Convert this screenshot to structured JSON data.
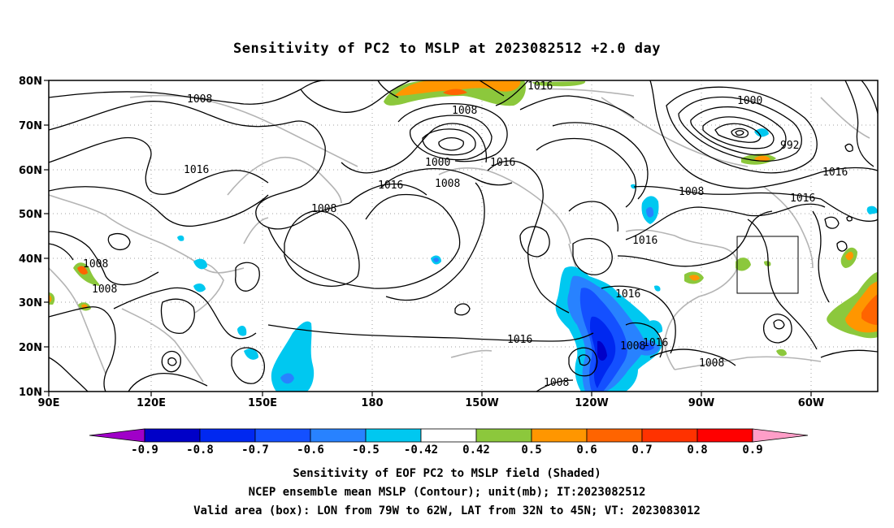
{
  "title": "Sensitivity of PC2 to MSLP at 2023082512 +2.0 day",
  "lat_ticks": [
    "80N",
    "70N",
    "60N",
    "50N",
    "40N",
    "30N",
    "20N",
    "10N"
  ],
  "lon_ticks": [
    "90E",
    "120E",
    "150E",
    "180",
    "150W",
    "120W",
    "90W",
    "60W"
  ],
  "contour_labels": [
    "1016",
    "1008",
    "1008",
    "1000",
    "1016",
    "1008",
    "1000",
    "992",
    "1016",
    "1016",
    "1016",
    "1008",
    "1008",
    "1008",
    "1016",
    "1016",
    "1008",
    "1016",
    "1008",
    "1016",
    "1016",
    "1016",
    "1008",
    "1008"
  ],
  "colorbar": {
    "labels": [
      "-0.9",
      "-0.8",
      "-0.7",
      "-0.6",
      "-0.5",
      "-0.42",
      "0.42",
      "0.5",
      "0.6",
      "0.7",
      "0.8",
      "0.9"
    ],
    "colors": [
      "#a000c8",
      "#0000c8",
      "#0028f0",
      "#1450ff",
      "#2882ff",
      "#00c8f0",
      "#ffffff",
      "#8cc83c",
      "#ff9600",
      "#ff6400",
      "#ff3200",
      "#ff0000",
      "#ff9ec8"
    ]
  },
  "box": {
    "lon_range": [
      "79W",
      "62W"
    ],
    "lat_range": [
      "32N",
      "45N"
    ]
  },
  "caption": {
    "line1": "Sensitivity of EOF PC2 to MSLP field (Shaded)",
    "line2": "NCEP ensemble mean MSLP (Contour); unit(mb); IT:2023082512",
    "line3": "Valid area (box): LON from 79W to 62W, LAT from 32N to 45N; VT: 2023083012"
  }
}
